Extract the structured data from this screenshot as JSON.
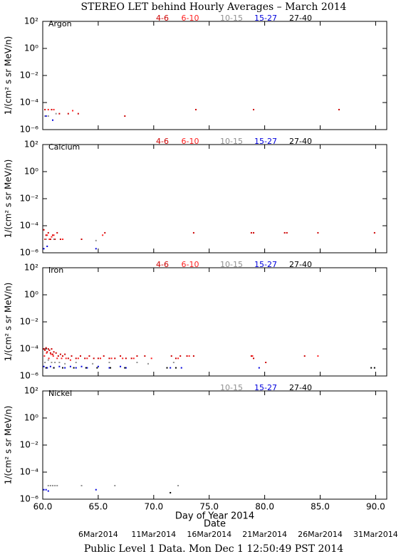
{
  "title": "STEREO LET behind Hourly Averages – March 2014",
  "footer": "Public Level 1 Data. Mon Dec  1 12:50:49 PST 2014",
  "chart_data": [
    {
      "type": "scatter",
      "title": "Argon",
      "ylabel": "1/(cm² s sr MeV/n)",
      "xlim": [
        60,
        91
      ],
      "ylim": [
        1e-06,
        100
      ],
      "log_y": true,
      "yticks": [
        {
          "value": 100,
          "label": "10²"
        },
        {
          "value": 1,
          "label": "10⁰"
        },
        {
          "value": 0.01,
          "label": "10⁻²"
        },
        {
          "value": 0.0001,
          "label": "10⁻⁴"
        },
        {
          "value": 1e-06,
          "label": "10⁻⁶"
        }
      ],
      "series": [
        {
          "name": "4-6",
          "color": "#cc0000",
          "x": [
            60.2,
            60.8,
            61.5,
            62.3,
            63.2,
            67.4,
            73.8,
            79.0,
            86.7
          ],
          "values": [
            3e-05,
            3e-05,
            1.5e-05,
            1.5e-05,
            1.5e-05,
            1e-05,
            3e-05,
            3e-05,
            3e-05
          ]
        },
        {
          "name": "6-10",
          "color": "#ff2020",
          "x": [
            60.5,
            61.0,
            62.7
          ],
          "values": [
            3e-05,
            3e-05,
            2.5e-05
          ]
        },
        {
          "name": "10-15",
          "color": "#909090",
          "x": [
            60.2,
            60.5,
            61.2
          ],
          "values": [
            1e-05,
            1e-05,
            1.5e-05
          ]
        },
        {
          "name": "15-27",
          "color": "#0000dd",
          "x": [
            60.3,
            60.9
          ],
          "values": [
            1e-05,
            5e-06
          ]
        },
        {
          "name": "27-40",
          "color": "#000000",
          "x": [],
          "values": []
        }
      ]
    },
    {
      "type": "scatter",
      "title": "Calcium",
      "ylabel": "1/(cm² s sr MeV/n)",
      "xlim": [
        60,
        91
      ],
      "ylim": [
        1e-06,
        100
      ],
      "log_y": true,
      "yticks": [
        {
          "value": 100,
          "label": "10²"
        },
        {
          "value": 1,
          "label": "10⁰"
        },
        {
          "value": 0.01,
          "label": "10⁻²"
        },
        {
          "value": 0.0001,
          "label": "10⁻⁴"
        },
        {
          "value": 1e-06,
          "label": "10⁻⁶"
        }
      ],
      "series": [
        {
          "name": "4-6",
          "color": "#cc0000",
          "x": [
            60.1,
            60.3,
            60.5,
            60.7,
            60.9,
            61.1,
            61.3,
            61.6,
            63.5,
            65.6,
            73.6,
            78.8,
            79.0,
            81.8,
            82.0,
            84.8,
            89.9
          ],
          "values": [
            5e-05,
            2e-05,
            3e-05,
            1e-05,
            2e-05,
            1e-05,
            3e-05,
            1e-05,
            1e-05,
            3e-05,
            3e-05,
            3e-05,
            3e-05,
            3e-05,
            3e-05,
            3e-05,
            3e-05
          ]
        },
        {
          "name": "6-10",
          "color": "#ff2020",
          "x": [
            60.2,
            60.4,
            60.6,
            60.8,
            61.0,
            61.8,
            65.4
          ],
          "values": [
            1e-05,
            2e-05,
            1e-05,
            1.5e-05,
            2e-05,
            1e-05,
            2e-05
          ]
        },
        {
          "name": "10-15",
          "color": "#909090",
          "x": [
            60.3,
            61.0,
            64.8
          ],
          "values": [
            1e-05,
            1e-05,
            8e-06
          ]
        },
        {
          "name": "15-27",
          "color": "#0000dd",
          "x": [
            60.1,
            60.4,
            64.8
          ],
          "values": [
            2e-06,
            3e-06,
            2e-06
          ]
        },
        {
          "name": "27-40",
          "color": "#000000",
          "x": [],
          "values": []
        }
      ]
    },
    {
      "type": "scatter",
      "title": "Iron",
      "ylabel": "1/(cm² s sr MeV/n)",
      "xlim": [
        60,
        91
      ],
      "ylim": [
        1e-06,
        100
      ],
      "log_y": true,
      "yticks": [
        {
          "value": 100,
          "label": "10²"
        },
        {
          "value": 1,
          "label": "10⁰"
        },
        {
          "value": 0.01,
          "label": "10⁻²"
        },
        {
          "value": 0.0001,
          "label": "10⁻⁴"
        },
        {
          "value": 1e-06,
          "label": "10⁻⁶"
        }
      ],
      "series": [
        {
          "name": "4-6",
          "color": "#cc0000",
          "x": [
            60.1,
            60.2,
            60.3,
            60.4,
            60.5,
            60.6,
            60.7,
            60.8,
            60.9,
            61.0,
            61.2,
            61.4,
            61.6,
            61.8,
            62.0,
            62.3,
            62.6,
            63.0,
            63.4,
            63.8,
            64.2,
            64.6,
            65.0,
            65.5,
            66.0,
            66.5,
            67.0,
            67.5,
            68.0,
            68.5,
            69.2,
            71.6,
            72.0,
            72.4,
            73.0,
            73.6,
            78.8,
            79.0,
            80.1,
            83.6
          ],
          "values": [
            0.0001,
            8e-05,
            0.00012,
            6e-05,
            0.0001,
            8e-05,
            5e-05,
            0.0001,
            4e-05,
            6e-05,
            5e-05,
            3e-05,
            4e-05,
            3e-05,
            4e-05,
            2e-05,
            3e-05,
            2e-05,
            3e-05,
            2e-05,
            3e-05,
            2e-05,
            2e-05,
            3e-05,
            2e-05,
            2e-05,
            3e-05,
            2e-05,
            2e-05,
            3e-05,
            3e-05,
            3e-05,
            2e-05,
            3e-05,
            3e-05,
            3e-05,
            3e-05,
            2e-05,
            1e-05,
            3e-05
          ]
        },
        {
          "name": "6-10",
          "color": "#ff2020",
          "x": [
            60.15,
            60.35,
            60.55,
            60.75,
            60.95,
            61.3,
            61.7,
            62.1,
            62.5,
            63.2,
            64.0,
            65.2,
            66.2,
            67.2,
            68.2,
            69.8,
            72.2,
            73.2,
            78.9,
            84.8
          ],
          "values": [
            3e-05,
            5e-05,
            2e-05,
            4e-05,
            3e-05,
            2e-05,
            2e-05,
            2e-05,
            1.5e-05,
            2e-05,
            2e-05,
            2e-05,
            2e-05,
            2e-05,
            2e-05,
            2e-05,
            2e-05,
            3e-05,
            3e-05,
            3e-05
          ]
        },
        {
          "name": "10-15",
          "color": "#909090",
          "x": [
            60.2,
            60.5,
            60.8,
            61.1,
            61.5,
            62.0,
            63.0,
            64.5,
            66.0,
            68.5,
            69.5,
            71.8
          ],
          "values": [
            1e-05,
            1.5e-05,
            1e-05,
            1e-05,
            1e-05,
            8e-06,
            1e-05,
            8e-06,
            1e-05,
            1e-05,
            8e-06,
            1e-05
          ]
        },
        {
          "name": "15-27",
          "color": "#0000dd",
          "x": [
            60.1,
            60.4,
            60.7,
            61.0,
            61.5,
            62.0,
            62.5,
            63.0,
            63.5,
            64.0,
            65.0,
            66.0,
            67.0,
            67.5,
            71.5,
            72.5,
            79.5
          ],
          "values": [
            5e-06,
            4e-06,
            5e-06,
            4e-06,
            5e-06,
            4e-06,
            5e-06,
            4e-06,
            5e-06,
            4e-06,
            5e-06,
            4e-06,
            5e-06,
            4e-06,
            4e-06,
            4e-06,
            4e-06
          ]
        },
        {
          "name": "27-40",
          "color": "#000000",
          "x": [
            60.3,
            61.0,
            61.8,
            62.8,
            63.9,
            64.9,
            66.1,
            67.4,
            71.2,
            72.0,
            89.6,
            89.9
          ],
          "values": [
            4e-06,
            4e-06,
            4e-06,
            4e-06,
            4e-06,
            4e-06,
            4e-06,
            4e-06,
            4e-06,
            4e-06,
            4e-06,
            4e-06
          ]
        }
      ]
    },
    {
      "type": "scatter",
      "title": "Nickel",
      "ylabel": "1/(cm² s sr MeV/n)",
      "xlim": [
        60,
        91
      ],
      "ylim": [
        1e-06,
        100
      ],
      "log_y": true,
      "xlabel": "Day of Year 2014",
      "date_label": "Date",
      "xticks": [
        {
          "value": 60,
          "label": "60.0"
        },
        {
          "value": 65,
          "label": "65.0"
        },
        {
          "value": 70,
          "label": "70.0"
        },
        {
          "value": 75,
          "label": "75.0"
        },
        {
          "value": 80,
          "label": "80.0"
        },
        {
          "value": 85,
          "label": "85.0"
        },
        {
          "value": 90,
          "label": "90.0"
        }
      ],
      "date_ticks": [
        {
          "value": 65,
          "label": "6Mar2014"
        },
        {
          "value": 70,
          "label": "11Mar2014"
        },
        {
          "value": 75,
          "label": "16Mar2014"
        },
        {
          "value": 80,
          "label": "21Mar2014"
        },
        {
          "value": 85,
          "label": "26Mar2014"
        },
        {
          "value": 90,
          "label": "31Mar2014"
        }
      ],
      "yticks": [
        {
          "value": 100,
          "label": "10²"
        },
        {
          "value": 1,
          "label": "10⁰"
        },
        {
          "value": 0.01,
          "label": "10⁻²"
        },
        {
          "value": 0.0001,
          "label": "10⁻⁴"
        },
        {
          "value": 1e-06,
          "label": "10⁻⁶"
        }
      ],
      "series": [
        {
          "name": "10-15",
          "color": "#909090",
          "x": [
            60.5,
            60.7,
            60.9,
            61.1,
            61.3,
            63.5,
            66.5,
            72.2
          ],
          "values": [
            1e-05,
            1e-05,
            1e-05,
            1e-05,
            1e-05,
            1e-05,
            1e-05,
            1e-05
          ]
        },
        {
          "name": "15-27",
          "color": "#0000dd",
          "x": [
            60.1,
            60.3,
            60.5,
            64.8
          ],
          "values": [
            5e-06,
            5e-06,
            4e-06,
            5e-06
          ]
        },
        {
          "name": "27-40",
          "color": "#000000",
          "x": [
            71.5
          ],
          "values": [
            3e-06
          ]
        }
      ]
    }
  ]
}
